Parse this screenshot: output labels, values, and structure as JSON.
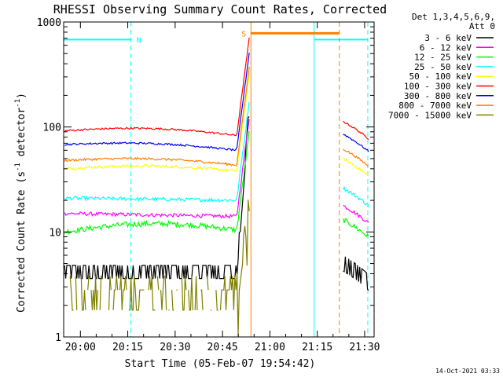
{
  "chart_data": {
    "type": "line",
    "title": "RHESSI Observing Summary Count Rates, Corrected",
    "xlabel": "Start Time (05-Feb-07 19:54:42)",
    "ylabel_main": "Corrected Count Rate (s",
    "ylabel_sup1": "-1",
    "ylabel_mid": " detector",
    "ylabel_sup2": "-1",
    "ylabel_end": ")",
    "yscale": "log",
    "ylim": [
      1,
      1000
    ],
    "xlim": [
      "19:54:42",
      "21:33:00"
    ],
    "grid": false,
    "legend_position": "right",
    "legend_header": [
      "Det 1,3,4,5,6,9,",
      "Att 0"
    ],
    "timestamp": "14-Oct-2021 03:33",
    "x_ticks": [
      "20:00",
      "20:15",
      "20:30",
      "20:45",
      "21:00",
      "21:15",
      "21:30"
    ],
    "x_tick_minutes": [
      5.3,
      20.3,
      35.3,
      50.3,
      65.3,
      80.3,
      95.3
    ],
    "y_ticks": [
      {
        "label": "1000",
        "value": 1000
      },
      {
        "label": "100",
        "value": 100
      },
      {
        "label": "10",
        "value": 10
      },
      {
        "label": "1",
        "value": 1
      }
    ],
    "series": [
      {
        "name": "3 - 6 keV",
        "color": "#000000",
        "level_start": 4.5,
        "level_end": 4.3,
        "bump": 0.9,
        "after": 4.8,
        "noise": 0.18
      },
      {
        "name": "6 - 12 keV",
        "color": "#ff00ff",
        "level_start": 15,
        "level_end": 14,
        "bump": 1.0,
        "after": 15,
        "noise": 0.04
      },
      {
        "name": "12 - 25 keV",
        "color": "#00ff00",
        "level_start": 10,
        "level_end": 10,
        "bump": 1.2,
        "after": 11,
        "noise": 0.06
      },
      {
        "name": "25 - 50 keV",
        "color": "#00ffff",
        "level_start": 21,
        "level_end": 20,
        "bump": 1.0,
        "after": 22,
        "noise": 0.04
      },
      {
        "name": "50 - 100 keV",
        "color": "#ffff00",
        "level_start": 40,
        "level_end": 37,
        "bump": 1.1,
        "after": 42,
        "noise": 0.03
      },
      {
        "name": "100 - 300 keV",
        "color": "#ff0000",
        "level_start": 92,
        "level_end": 80,
        "bump": 1.12,
        "after": 95,
        "noise": 0.02
      },
      {
        "name": "300 - 800 keV",
        "color": "#0000ff",
        "level_start": 68,
        "level_end": 58,
        "bump": 1.1,
        "after": 72,
        "noise": 0.02
      },
      {
        "name": "800 - 7000 keV",
        "color": "#ff7f00",
        "level_start": 48,
        "level_end": 42,
        "bump": 1.1,
        "after": 52,
        "noise": 0.025
      },
      {
        "name": "7000 - 15000 keV",
        "color": "#808000",
        "level_start": 1.8,
        "level_end": 1.5,
        "bump": 1.0,
        "after": 1.5,
        "noise": 0.6
      }
    ],
    "annotations": {
      "night": {
        "label": "N",
        "color": "#00ffff",
        "level": 680,
        "spans": [
          [
            "19:54:42",
            "20:16:00"
          ],
          [
            "21:14:00",
            "21:31:00"
          ]
        ]
      },
      "saa": {
        "label": "S",
        "color": "#ff7f00",
        "level": 780,
        "spans": [
          [
            "20:54:00",
            "21:22:00"
          ]
        ]
      },
      "data_gap": [
        "20:54:00",
        "21:23:00"
      ],
      "flare_peak_time": "20:53:30"
    }
  }
}
